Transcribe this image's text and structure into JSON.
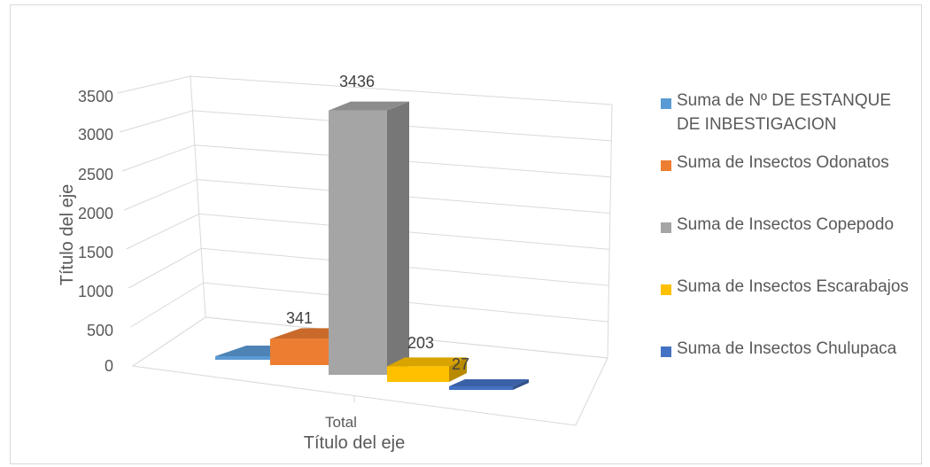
{
  "chart_data": {
    "type": "bar",
    "title": "",
    "xlabel": "Título del eje",
    "ylabel": "Título del eje",
    "categories": [
      "Total"
    ],
    "ylim": [
      0,
      3500
    ],
    "yticks": [
      0,
      500,
      1000,
      1500,
      2000,
      2500,
      3000,
      3500
    ],
    "grid": true,
    "legend_position": "right",
    "series": [
      {
        "name": "Suma de Nº DE ESTANQUE DE INBESTIGACION",
        "values": [
          20
        ],
        "color": "#5b9bd5",
        "data_label": ""
      },
      {
        "name": "Suma de Insectos Odonatos",
        "values": [
          341
        ],
        "color": "#ed7d31",
        "data_label": "341"
      },
      {
        "name": "Suma de Insectos Copepodo",
        "values": [
          3436
        ],
        "color": "#a5a5a5",
        "data_label": "3436"
      },
      {
        "name": "Suma de Insectos Escarabajos",
        "values": [
          203
        ],
        "color": "#ffc000",
        "data_label": "203"
      },
      {
        "name": "Suma de Insectos Chulupaca",
        "values": [
          27
        ],
        "color": "#4472c4",
        "data_label": "27"
      }
    ]
  }
}
